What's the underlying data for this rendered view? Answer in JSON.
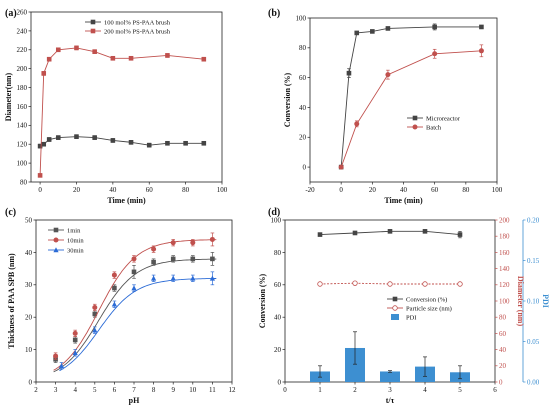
{
  "panels": [
    {
      "id": "a",
      "label": "(a)",
      "xlabel": "Time (min)",
      "ylabel": "Diameter(nm)",
      "xlim": [
        -5,
        100
      ],
      "ylim": [
        80,
        260
      ],
      "xticks": [
        0,
        20,
        40,
        60,
        80,
        100
      ],
      "yticks": [
        80,
        100,
        120,
        140,
        160,
        180,
        200,
        220,
        240,
        260
      ],
      "legend": [
        {
          "label": "100 mol% PS-PAA brush",
          "color": "#444444",
          "marker": "square"
        },
        {
          "label": "200 mol% PS-PAA brush",
          "color": "#c0504d",
          "marker": "square"
        }
      ]
    },
    {
      "id": "b",
      "label": "(b)",
      "xlabel": "Time (min)",
      "ylabel": "Conversion (%)",
      "xlim": [
        -20,
        100
      ],
      "ylim": [
        -10,
        100
      ],
      "xticks": [
        -20,
        0,
        20,
        40,
        60,
        80,
        100
      ],
      "yticks": [
        0,
        20,
        40,
        60,
        80,
        100
      ],
      "legend": [
        {
          "label": "Microreactor",
          "color": "#444444",
          "marker": "square"
        },
        {
          "label": "Batch",
          "color": "#c0504d",
          "marker": "circle"
        }
      ]
    },
    {
      "id": "c",
      "label": "(c)",
      "xlabel": "pH",
      "ylabel": "Thickness of PAA SPB (nm)",
      "xlim": [
        2,
        12
      ],
      "ylim": [
        0,
        50
      ],
      "xticks": [
        2,
        3,
        4,
        5,
        6,
        7,
        8,
        9,
        10,
        11,
        12
      ],
      "yticks": [
        0,
        10,
        20,
        30,
        40,
        50
      ],
      "legend": [
        {
          "label": "1min",
          "color": "#555555",
          "marker": "square"
        },
        {
          "label": "10min",
          "color": "#c0504d",
          "marker": "circle"
        },
        {
          "label": "30min",
          "color": "#2b6bd6",
          "marker": "triangle"
        }
      ]
    },
    {
      "id": "d",
      "label": "(d)",
      "xlabel": "t/τ",
      "ylabel": "Conversion (%)",
      "ylabel_right1": "Diameter (nm)",
      "ylabel_right2": "PDI",
      "xlim": [
        0,
        6
      ],
      "ylim": [
        0,
        100
      ],
      "ylim_right1": [
        0,
        200
      ],
      "ylim_right2": [
        0,
        0.2
      ],
      "xticks": [
        0,
        1,
        2,
        3,
        4,
        5,
        6
      ],
      "yticks": [
        0,
        20,
        40,
        60,
        80,
        100
      ],
      "yticks_right1": [
        0,
        20,
        40,
        60,
        80,
        100,
        120,
        140,
        160,
        180,
        200
      ],
      "yticks_right2": [
        "0.00",
        "0.05",
        "0.10",
        "0.15",
        "0.20"
      ],
      "legend": [
        {
          "label": "Conversion (%)",
          "color": "#444444",
          "marker": "square"
        },
        {
          "label": "Particle size (nm)",
          "color": "#c0504d",
          "marker": "circle-open"
        },
        {
          "label": "PDI",
          "color": "#3d8fd1",
          "marker": "bar"
        }
      ]
    }
  ],
  "chart_data": [
    {
      "panel": "a",
      "type": "line",
      "series": [
        {
          "name": "100 mol% PS-PAA brush",
          "color": "#444444",
          "x": [
            0,
            2,
            5,
            10,
            20,
            30,
            40,
            50,
            60,
            70,
            80,
            90
          ],
          "y": [
            118,
            120,
            125,
            127,
            128,
            127,
            124,
            122,
            119,
            121,
            121,
            121
          ],
          "err": [
            2,
            2,
            2,
            2,
            2,
            2,
            2,
            2,
            2,
            2,
            2,
            2
          ]
        },
        {
          "name": "200 mol% PS-PAA brush",
          "color": "#c0504d",
          "x": [
            0,
            2,
            5,
            10,
            20,
            30,
            40,
            50,
            70,
            90
          ],
          "y": [
            87,
            195,
            210,
            220,
            222,
            218,
            211,
            211,
            214,
            210
          ],
          "err": [
            0,
            2,
            2,
            2,
            2,
            2,
            2,
            2,
            2,
            2
          ]
        }
      ]
    },
    {
      "panel": "b",
      "type": "line",
      "series": [
        {
          "name": "Microreactor",
          "color": "#444444",
          "x": [
            0,
            5,
            10,
            20,
            30,
            60,
            90
          ],
          "y": [
            0,
            63,
            90,
            91,
            93,
            94,
            94
          ],
          "err": [
            0,
            3,
            1,
            1,
            1,
            2,
            1
          ]
        },
        {
          "name": "Batch",
          "color": "#c0504d",
          "x": [
            0,
            10,
            30,
            60,
            90
          ],
          "y": [
            0,
            29,
            62,
            76,
            78
          ],
          "err": [
            0,
            2,
            3,
            3,
            4
          ]
        }
      ]
    },
    {
      "panel": "c",
      "type": "scatter",
      "series": [
        {
          "name": "1min",
          "color": "#555555",
          "x": [
            3,
            4,
            5,
            6,
            7,
            8,
            9,
            10,
            11
          ],
          "y": [
            7,
            13,
            21,
            29,
            34,
            37,
            38,
            38,
            38
          ],
          "err": [
            1,
            1,
            1,
            1,
            2,
            1,
            1,
            1,
            2
          ]
        },
        {
          "name": "10min",
          "color": "#c0504d",
          "x": [
            3,
            4,
            5,
            6,
            7,
            8,
            9,
            10,
            11
          ],
          "y": [
            8,
            15,
            23,
            33,
            38,
            41,
            43,
            43,
            44
          ],
          "err": [
            1,
            1,
            1,
            1,
            1,
            1,
            1,
            1,
            2
          ]
        },
        {
          "name": "30min",
          "color": "#2b6bd6",
          "x": [
            3.3,
            4,
            5,
            6,
            7,
            8,
            9,
            10,
            11
          ],
          "y": [
            5,
            9,
            16,
            24,
            29,
            32,
            32,
            32,
            32
          ],
          "err": [
            1,
            1,
            1,
            1,
            1,
            1,
            1,
            1,
            2
          ]
        }
      ]
    },
    {
      "panel": "d",
      "type": "bar",
      "categories": [
        "1",
        "2",
        "3",
        "4",
        "5"
      ],
      "series": [
        {
          "name": "Conversion (%)",
          "axis": "left",
          "type": "line",
          "color": "#444444",
          "x": [
            1,
            2,
            3,
            4,
            5
          ],
          "y": [
            91,
            92,
            93,
            93,
            91
          ],
          "err": [
            1,
            1,
            1,
            1,
            2
          ]
        },
        {
          "name": "Particle size (nm)",
          "axis": "right1",
          "type": "line",
          "color": "#c0504d",
          "x": [
            1,
            2,
            3,
            4,
            5
          ],
          "y": [
            121,
            122,
            121,
            121,
            121
          ],
          "err": [
            1,
            1,
            1,
            1,
            1
          ]
        },
        {
          "name": "PDI",
          "axis": "right2",
          "type": "bar",
          "color": "#3d8fd1",
          "x": [
            1,
            2,
            3,
            4,
            5
          ],
          "y": [
            0.013,
            0.042,
            0.013,
            0.019,
            0.012
          ],
          "err": [
            0.007,
            0.02,
            0.001,
            0.012,
            0.008
          ]
        }
      ]
    }
  ]
}
